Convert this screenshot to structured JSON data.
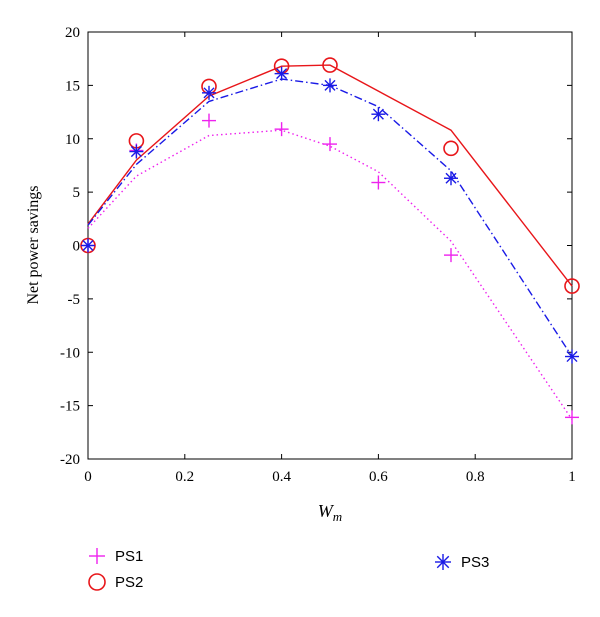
{
  "chart_data": {
    "type": "scatter",
    "xlabel_main": "W",
    "xlabel_sub": "m",
    "ylabel": "Net power savings",
    "xlim": [
      0,
      1
    ],
    "ylim": [
      -20,
      20
    ],
    "xticks": [
      0,
      0.2,
      0.4,
      0.6,
      0.8,
      1
    ],
    "xtick_labels": [
      "0",
      "0.2",
      "0.4",
      "0.6",
      "0.8",
      "1"
    ],
    "yticks": [
      -20,
      -15,
      -10,
      -5,
      0,
      5,
      10,
      15,
      20
    ],
    "ytick_labels": [
      "-20",
      "-15",
      "-10",
      "-5",
      "0",
      "5",
      "10",
      "15",
      "20"
    ],
    "grid": false,
    "legend_position": "bottom",
    "series": [
      {
        "name": "PS1",
        "color": "#ee22ee",
        "marker": "plus",
        "line_style": "dotted",
        "points_x": [
          0,
          0.1,
          0.25,
          0.4,
          0.5,
          0.6,
          0.75,
          1
        ],
        "points_y": [
          0,
          8.9,
          11.7,
          10.9,
          9.5,
          5.9,
          -0.9,
          -16.1
        ],
        "line_x": [
          0,
          0.1,
          0.25,
          0.4,
          0.5,
          0.6,
          0.75,
          1
        ],
        "line_y": [
          1.6,
          6.5,
          10.3,
          10.8,
          9.3,
          6.9,
          0.4,
          -16.3
        ]
      },
      {
        "name": "PS2",
        "color": "#e8161a",
        "marker": "circle",
        "line_style": "solid",
        "points_x": [
          0,
          0.1,
          0.25,
          0.4,
          0.5,
          0.75,
          1
        ],
        "points_y": [
          0,
          9.8,
          14.9,
          16.8,
          16.9,
          9.1,
          -3.8
        ],
        "line_x": [
          0,
          0.1,
          0.25,
          0.4,
          0.5,
          0.75,
          1
        ],
        "line_y": [
          2.0,
          8.0,
          14.0,
          16.8,
          16.9,
          10.8,
          -3.8
        ]
      },
      {
        "name": "PS3",
        "color": "#1a1ae6",
        "marker": "asterisk",
        "line_style": "dashdot",
        "points_x": [
          0,
          0.1,
          0.25,
          0.4,
          0.5,
          0.6,
          0.75,
          1
        ],
        "points_y": [
          0,
          8.8,
          14.3,
          16.1,
          15.0,
          12.3,
          6.3,
          -10.4
        ],
        "line_x": [
          0,
          0.1,
          0.25,
          0.4,
          0.5,
          0.6,
          0.75,
          1
        ],
        "line_y": [
          1.9,
          7.6,
          13.5,
          15.6,
          15.0,
          13.0,
          7.0,
          -10.4
        ]
      }
    ]
  }
}
